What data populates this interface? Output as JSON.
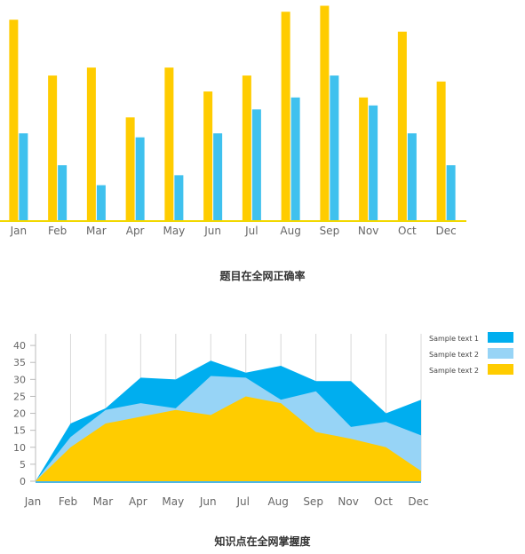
{
  "chart_data": [
    {
      "type": "bar",
      "title": "题目在全网正确率",
      "categories": [
        "Jan",
        "Feb",
        "Mar",
        "Apr",
        "May",
        "Jun",
        "Jul",
        "Aug",
        "Sep",
        "Nov",
        "Oct",
        "Dec"
      ],
      "series": [
        {
          "values": [
            101,
            73,
            77,
            52,
            77,
            65,
            73,
            105,
            108,
            62,
            95,
            70
          ],
          "color": "#FFCC00"
        },
        {
          "values": [
            44,
            28,
            18,
            42,
            23,
            44,
            56,
            62,
            73,
            58,
            44,
            28
          ],
          "color": "#3FC1EE"
        }
      ],
      "ylim": [
        0,
        110
      ],
      "axis_color": "#F2D800",
      "grid": false
    },
    {
      "type": "area",
      "title": "知识点在全网掌握度",
      "categories": [
        "Jan",
        "Feb",
        "Mar",
        "Apr",
        "May",
        "Jun",
        "Jul",
        "Aug",
        "Sep",
        "Nov",
        "Oct",
        "Dec"
      ],
      "yticks": [
        0,
        5,
        10,
        15,
        20,
        25,
        30,
        35,
        40
      ],
      "ylim": [
        0,
        45
      ],
      "series": [
        {
          "name": "Sample  text  1",
          "values": [
            0,
            17,
            21.5,
            30.5,
            30,
            35.5,
            32,
            34,
            29.5,
            29.5,
            20,
            24
          ],
          "color": "#00AEEF"
        },
        {
          "name": "Sample  text  2",
          "values": [
            0,
            13,
            21,
            23,
            21.5,
            31,
            30.5,
            24,
            26.5,
            16,
            17.5,
            13.5
          ],
          "color": "#97D4F6"
        },
        {
          "name": "Sample  text  2",
          "values": [
            0,
            10,
            17,
            19,
            21,
            19.5,
            25,
            23,
            14.5,
            12.5,
            10,
            3
          ],
          "color": "#FFCC00"
        }
      ],
      "grid": true,
      "legend": "top-right"
    }
  ]
}
